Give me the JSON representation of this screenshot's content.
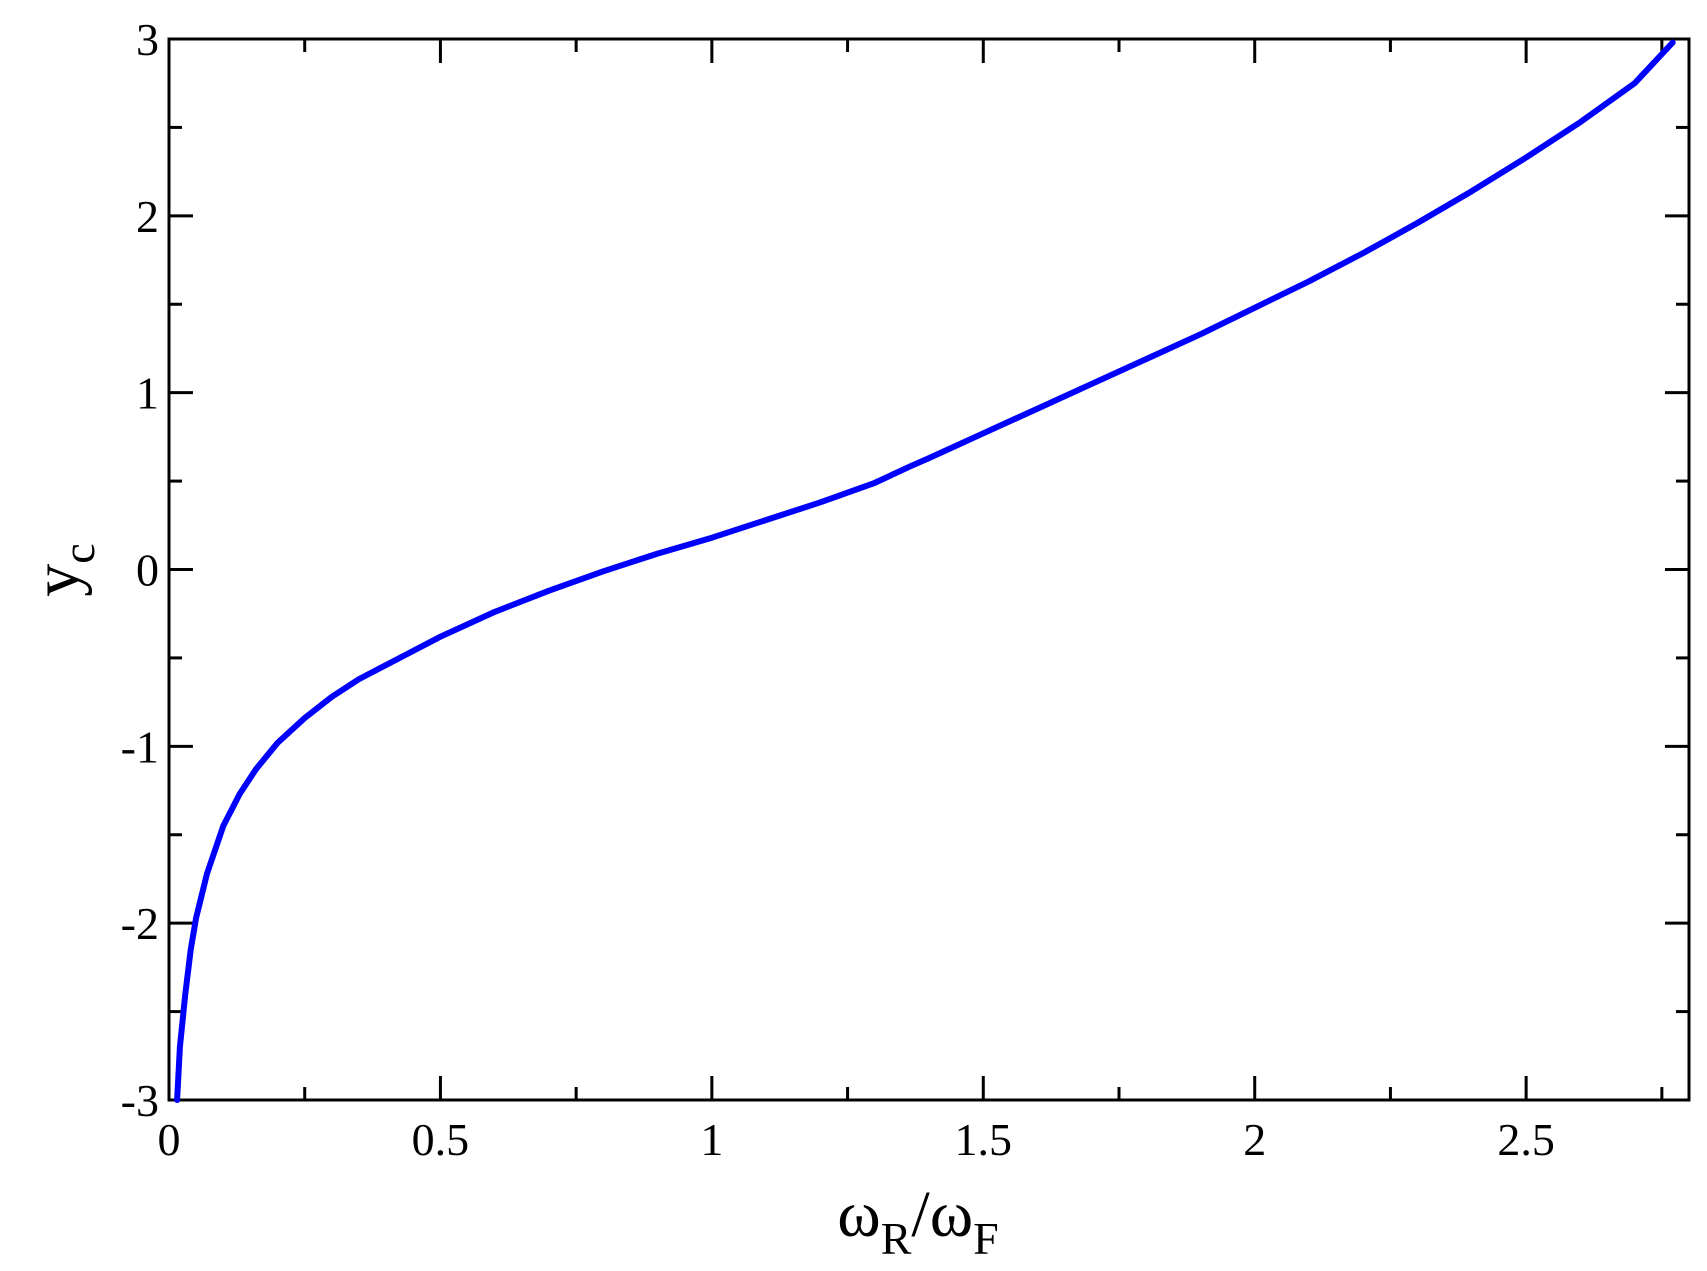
{
  "chart_data": {
    "type": "line",
    "title": "",
    "xlabel": {
      "base1": "ω",
      "sub1": "R",
      "sep": "/",
      "base2": "ω",
      "sub2": "F"
    },
    "ylabel": {
      "base": "y",
      "sub": "c"
    },
    "xlim": [
      0,
      2.8
    ],
    "ylim": [
      -3,
      3
    ],
    "x_ticks": [
      0,
      0.5,
      1,
      1.5,
      2,
      2.5
    ],
    "x_tick_labels": [
      "0",
      "0.5",
      "1",
      "1.5",
      "2",
      "2.5"
    ],
    "x_minor_step": 0.25,
    "y_ticks": [
      -3,
      -2,
      -1,
      0,
      1,
      2,
      3
    ],
    "y_tick_labels": [
      "-3",
      "-2",
      "-1",
      "0",
      "1",
      "2",
      "3"
    ],
    "y_minor_step": 0.5,
    "grid": false,
    "series": [
      {
        "color": "#0000ff",
        "x": [
          0.015,
          0.02,
          0.03,
          0.04,
          0.05,
          0.07,
          0.1,
          0.13,
          0.16,
          0.2,
          0.25,
          0.3,
          0.35,
          0.4,
          0.5,
          0.6,
          0.7,
          0.8,
          0.9,
          1.0,
          1.1,
          1.2,
          1.3,
          1.37,
          1.4,
          1.5,
          1.6,
          1.7,
          1.8,
          1.9,
          2.0,
          2.1,
          2.2,
          2.3,
          2.4,
          2.5,
          2.6,
          2.7,
          2.77
        ],
        "y": [
          -3.0,
          -2.7,
          -2.4,
          -2.15,
          -1.97,
          -1.72,
          -1.45,
          -1.27,
          -1.13,
          -0.98,
          -0.84,
          -0.72,
          -0.62,
          -0.54,
          -0.38,
          -0.24,
          -0.12,
          -0.01,
          0.09,
          0.18,
          0.28,
          0.38,
          0.49,
          0.59,
          0.63,
          0.77,
          0.91,
          1.05,
          1.19,
          1.33,
          1.48,
          1.63,
          1.79,
          1.96,
          2.14,
          2.33,
          2.53,
          2.75,
          2.98
        ]
      }
    ]
  }
}
